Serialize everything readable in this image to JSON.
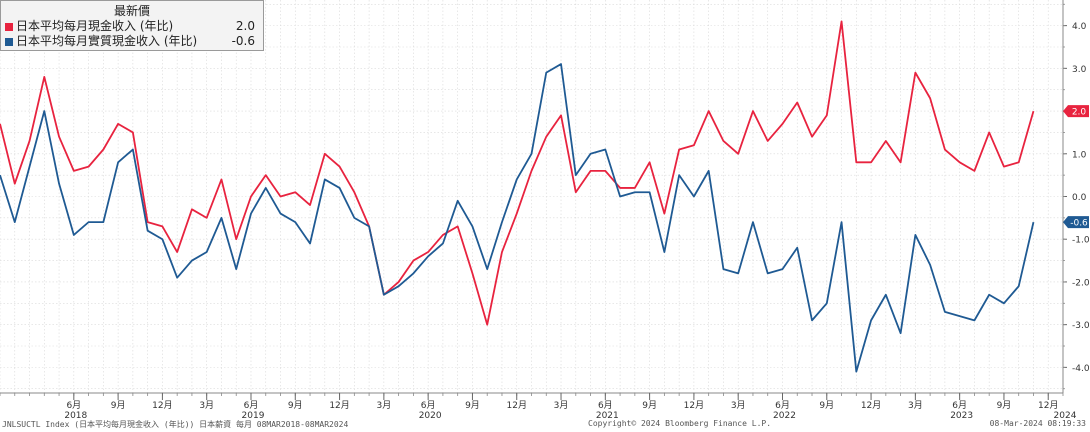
{
  "legend": {
    "header": "最新價",
    "series": [
      {
        "label": "日本平均每月現金收入 (年比)",
        "value": "2.0",
        "color": "#e8233f"
      },
      {
        "label": "日本平均每月實質現金收入 (年比)",
        "value": "-0.6",
        "color": "#1f5a93"
      }
    ]
  },
  "footer": {
    "left": "JNLSUCTL Index (日本平均每月現金收入 (年比)) 日本薪資  每月 08MAR2018-08MAR2024",
    "center": "Copyright© 2024 Bloomberg Finance L.P.",
    "right": "08-Mar-2024 08:19:33"
  },
  "chart_data": {
    "type": "line",
    "x_start": "2018-01",
    "x_end": "2024-01",
    "ylim": [
      -4.6,
      4.6
    ],
    "y_ticks": [
      4.0,
      3.0,
      2.0,
      1.0,
      0.0,
      -1.0,
      -2.0,
      -3.0,
      -4.0
    ],
    "y_tick_labels": [
      "4.0",
      "3.0",
      "2.0",
      "1.0",
      "0.0",
      "-1.0",
      "-2.0",
      "-3.0",
      "-4.0"
    ],
    "x_ticks": [
      {
        "date": "2018-06",
        "label": "6月"
      },
      {
        "date": "2018-09",
        "label": "9月"
      },
      {
        "date": "2018-12",
        "label": "12月"
      },
      {
        "date": "2019-03",
        "label": "3月"
      },
      {
        "date": "2019-06",
        "label": "6月"
      },
      {
        "date": "2019-09",
        "label": "9月"
      },
      {
        "date": "2019-12",
        "label": "12月"
      },
      {
        "date": "2020-03",
        "label": "3月"
      },
      {
        "date": "2020-06",
        "label": "6月"
      },
      {
        "date": "2020-09",
        "label": "9月"
      },
      {
        "date": "2020-12",
        "label": "12月"
      },
      {
        "date": "2021-03",
        "label": "3月"
      },
      {
        "date": "2021-06",
        "label": "6月"
      },
      {
        "date": "2021-09",
        "label": "9月"
      },
      {
        "date": "2021-12",
        "label": "12月"
      },
      {
        "date": "2022-03",
        "label": "3月"
      },
      {
        "date": "2022-06",
        "label": "6月"
      },
      {
        "date": "2022-09",
        "label": "9月"
      },
      {
        "date": "2022-12",
        "label": "12月"
      },
      {
        "date": "2023-03",
        "label": "3月"
      },
      {
        "date": "2023-06",
        "label": "6月"
      },
      {
        "date": "2023-09",
        "label": "9月"
      },
      {
        "date": "2023-12",
        "label": "12月"
      }
    ],
    "year_labels": [
      {
        "date": "2018-06",
        "label": "2018"
      },
      {
        "date": "2019-06",
        "label": "2019"
      },
      {
        "date": "2020-06",
        "label": "2020"
      },
      {
        "date": "2021-06",
        "label": "2021"
      },
      {
        "date": "2022-06",
        "label": "2022"
      },
      {
        "date": "2023-06",
        "label": "2023"
      },
      {
        "date": "2024-01",
        "label": "2024"
      }
    ],
    "series": [
      {
        "name": "日本平均每月現金收入 (年比)",
        "color": "#e8233f",
        "last_label": "2.0",
        "values": [
          1.7,
          0.3,
          1.3,
          2.8,
          1.4,
          0.6,
          0.7,
          1.1,
          1.7,
          1.5,
          -0.6,
          -0.7,
          -1.3,
          -0.3,
          -0.5,
          0.4,
          -1.0,
          0.0,
          0.5,
          0.0,
          0.1,
          -0.2,
          1.0,
          0.7,
          0.1,
          -0.7,
          -2.3,
          -2.0,
          -1.5,
          -1.3,
          -0.9,
          -0.7,
          -1.8,
          -3.0,
          -1.3,
          -0.4,
          0.6,
          1.4,
          1.9,
          0.1,
          0.6,
          0.6,
          0.2,
          0.2,
          0.8,
          -0.4,
          1.1,
          1.2,
          2.0,
          1.3,
          1.0,
          2.0,
          1.3,
          1.7,
          2.2,
          1.4,
          1.9,
          4.1,
          0.8,
          0.8,
          1.3,
          0.8,
          2.9,
          2.3,
          1.1,
          0.8,
          0.6,
          1.5,
          0.7,
          0.8,
          2.0
        ]
      },
      {
        "name": "日本平均每月實質現金收入 (年比)",
        "color": "#1f5a93",
        "last_label": "-0.6",
        "values": [
          0.5,
          -0.6,
          0.7,
          2.0,
          0.3,
          -0.9,
          -0.6,
          -0.6,
          0.8,
          1.1,
          -0.8,
          -1.0,
          -1.9,
          -1.5,
          -1.3,
          -0.5,
          -1.7,
          -0.4,
          0.2,
          -0.4,
          -0.6,
          -1.1,
          0.4,
          0.2,
          -0.5,
          -0.7,
          -2.3,
          -2.1,
          -1.8,
          -1.4,
          -1.1,
          -0.1,
          -0.7,
          -1.7,
          -0.6,
          0.4,
          1.0,
          2.9,
          3.1,
          0.5,
          1.0,
          1.1,
          0.0,
          0.1,
          0.1,
          -1.3,
          0.5,
          0.0,
          0.6,
          -1.7,
          -1.8,
          -0.6,
          -1.8,
          -1.7,
          -1.2,
          -2.9,
          -2.5,
          -0.6,
          -4.1,
          -2.9,
          -2.3,
          -3.2,
          -0.9,
          -1.6,
          -2.7,
          -2.8,
          -2.9,
          -2.3,
          -2.5,
          -2.1,
          -0.6
        ]
      }
    ]
  }
}
